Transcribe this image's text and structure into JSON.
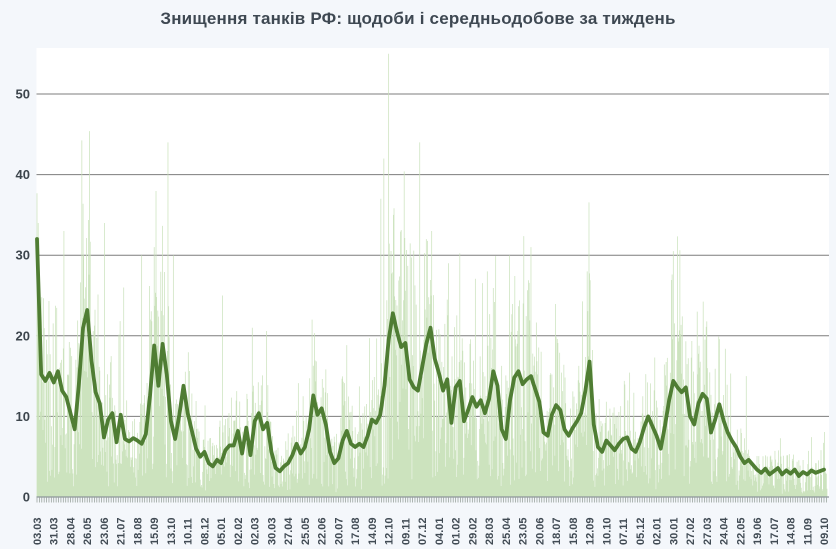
{
  "chart_data": {
    "type": "combo",
    "title": "Знищення танків РФ: щодоби і середньодобове за тиждень",
    "legend": "none",
    "grid": "horizontal",
    "y_ticks": [
      0,
      10,
      20,
      30,
      40,
      50
    ],
    "ylim": [
      0,
      55.5
    ],
    "x_tick_interval_days": 28,
    "total_days": 1322,
    "x_tick_labels": [
      "03.03",
      "31.03",
      "28.04",
      "26.05",
      "23.06",
      "21.07",
      "18.08",
      "15.09",
      "13.10",
      "10.11",
      "08.12",
      "05.01",
      "02.02",
      "02.03",
      "30.03",
      "27.04",
      "25.05",
      "22.06",
      "20.07",
      "17.08",
      "14.09",
      "12.10",
      "09.11",
      "07.12",
      "04.01",
      "01.02",
      "29.02",
      "28.03",
      "25.04",
      "23.05",
      "20.06",
      "18.07",
      "15.08",
      "12.09",
      "10.10",
      "07.11",
      "05.12",
      "02.01",
      "30.01",
      "27.02",
      "27.03",
      "24.04",
      "22.05",
      "19.06",
      "17.07",
      "14.08",
      "11.09",
      "09.10"
    ],
    "colors": {
      "daily_bar": "#c9e2ba",
      "weekly_avg_line": "#4f7d33",
      "gridline": "#7d7d7d",
      "axis": "#8d959a",
      "tick": "#9aa49e",
      "label_text": "#414b54",
      "plot_bg": "#ffffff",
      "page_bg": "#f4f7fb",
      "title_text": "#3e4852"
    },
    "series": [
      {
        "name": "щодоби",
        "type": "bar",
        "resolution": "daily",
        "note": "daily bars; envelope reconstructed from weekly averages with seeded noise plus listed spikes"
      },
      {
        "name": "середньодобове за тиждень",
        "type": "line",
        "resolution": "weekly",
        "values": [
          32,
          15.2,
          14.4,
          15.4,
          14.2,
          15.6,
          13.2,
          12.4,
          10.4,
          8.4,
          14,
          21,
          23.2,
          17,
          13,
          11.6,
          7.4,
          9.6,
          10.4,
          6.8,
          10.2,
          7.2,
          6.9,
          7.3,
          7,
          6.6,
          7.8,
          12.6,
          18.8,
          13.8,
          19,
          15.2,
          9.4,
          7.2,
          10.2,
          13.8,
          10.4,
          8.2,
          6,
          5,
          5.6,
          4.2,
          3.8,
          4.6,
          4.2,
          5.8,
          6.4,
          6.4,
          8.2,
          5.4,
          8.6,
          5.2,
          9.4,
          10.4,
          8.4,
          9.2,
          5.6,
          3.6,
          3.2,
          3.8,
          4.2,
          5.2,
          6.6,
          5.4,
          6.2,
          8.4,
          12.6,
          10.2,
          11,
          9,
          5.6,
          4.2,
          4.8,
          7,
          8.2,
          6.6,
          6.2,
          6.6,
          6.2,
          7.6,
          9.6,
          9.2,
          10.2,
          13.8,
          19.5,
          22.8,
          20.5,
          18.6,
          19.1,
          14.6,
          13.6,
          13.2,
          16.1,
          19,
          21,
          17.2,
          15.4,
          13.2,
          14.6,
          9.2,
          13.6,
          14.4,
          9.4,
          10.8,
          12.4,
          11.2,
          12,
          10.4,
          12.2,
          15.6,
          13.8,
          8.4,
          7.2,
          12,
          14.8,
          15.6,
          14,
          14.6,
          15,
          13.4,
          11.8,
          8,
          7.6,
          10.2,
          11.4,
          10.8,
          8.4,
          7.6,
          8.6,
          9.4,
          10.4,
          13.2,
          16.8,
          9,
          6.2,
          5.6,
          7,
          6.4,
          5.8,
          6.6,
          7.2,
          7.4,
          6,
          5.6,
          6.8,
          8.6,
          10,
          8.8,
          7.6,
          6,
          8.8,
          12,
          14.4,
          13.6,
          13,
          13.6,
          10,
          9,
          11.6,
          12.8,
          12.2,
          8,
          9.6,
          11.5,
          9.5,
          8,
          7,
          6.2,
          5,
          4.2,
          4.6,
          4,
          3.4,
          3,
          3.5,
          2.8,
          3.2,
          3.6,
          2.8,
          3.3,
          2.9,
          3.4,
          2.6,
          3.1,
          2.8,
          3.3,
          3,
          3.2,
          3.4
        ]
      }
    ],
    "daily_spikes": {
      "2": 34,
      "45": 33,
      "78": 30,
      "113": 34,
      "145": 26,
      "175": 30,
      "196": 31,
      "219": 44,
      "228": 30,
      "310": 25,
      "360": 21,
      "460": 22,
      "575": 37,
      "580": 42,
      "588": 55,
      "596": 35,
      "640": 44,
      "660": 33,
      "688": 29,
      "753": 28,
      "790": 30,
      "826": 31,
      "920": 28,
      "1104": 23,
      "1186": 15
    },
    "noise": {
      "seed": 42,
      "min_factor": 0.12,
      "max_factor": 1.88
    }
  }
}
